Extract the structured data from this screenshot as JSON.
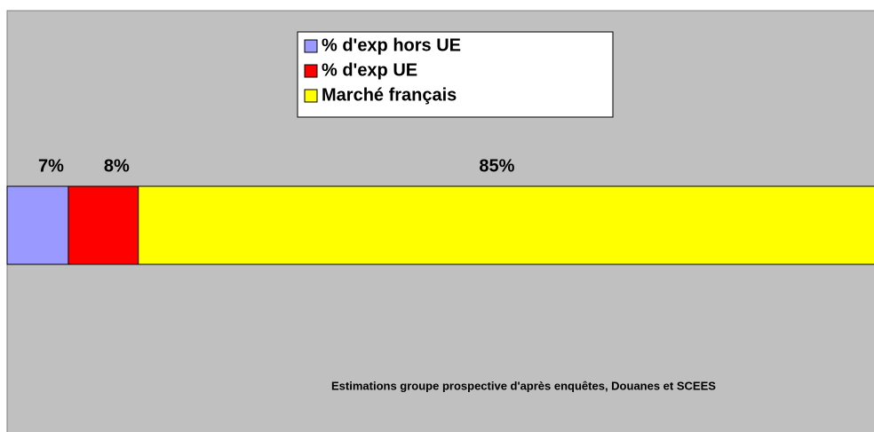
{
  "chart_data": {
    "type": "bar",
    "orientation": "horizontal",
    "stacked": true,
    "series": [
      {
        "name": "% d'exp hors UE",
        "color": "#9999ff",
        "values": [
          7
        ],
        "value_labels": [
          "7%"
        ]
      },
      {
        "name": "% d'exp UE",
        "color": "#ff0000",
        "values": [
          8
        ],
        "value_labels": [
          "8%"
        ]
      },
      {
        "name": "Marché français",
        "color": "#ffff00",
        "values": [
          85
        ],
        "value_labels": [
          "85%"
        ]
      }
    ],
    "xlim": [
      0,
      100
    ],
    "legend": "top",
    "annotation": "Estimations groupe prospective d'après enquêtes, Douanes et SCEES"
  }
}
